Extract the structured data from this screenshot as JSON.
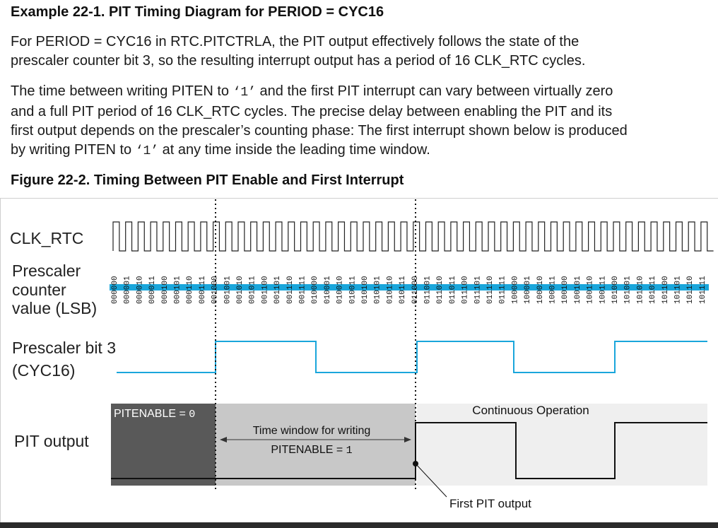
{
  "example": {
    "title": "Example 22-1. PIT Timing Diagram for PERIOD = CYC16",
    "para1_a": "For PERIOD = CYC16 in RTC.PITCTRLA, the PIT output effectively follows the state of the",
    "para1_b": "prescaler counter bit 3, so the resulting interrupt output has a period of 16 CLK_RTC cycles.",
    "para2_line1_a": "The time between writing PITEN to ",
    "para2_code": "‘1’",
    "para2_line1_b": " and the first PIT interrupt can vary between virtually zero",
    "para2_line2": "and a full PIT period of 16 CLK_RTC cycles. The precise delay between enabling the PIT and its",
    "para2_line3": "first output depends on the prescaler’s counting phase: The first interrupt shown below is produced",
    "para2_line4_a": "by writing PITEN to ",
    "para2_line4_b": " at any time inside the leading time window."
  },
  "figure": {
    "title": "Figure 22-2. Timing Between PIT Enable and First Interrupt",
    "labels": {
      "clk": "CLK_RTC",
      "prescaler_1": "Prescaler",
      "prescaler_2": "counter",
      "prescaler_3": "value (LSB)",
      "bit3_1": "Prescaler bit 3",
      "bit3_2": "(CYC16)",
      "pit": "PIT output"
    },
    "counter_values": [
      "000000",
      "000001",
      "000010",
      "000011",
      "000100",
      "000101",
      "000110",
      "000111",
      "001000",
      "001001",
      "001010",
      "001011",
      "001100",
      "001101",
      "001110",
      "001111",
      "010000",
      "010001",
      "010010",
      "010011",
      "010100",
      "010101",
      "010110",
      "010111",
      "011000",
      "011001",
      "011010",
      "011011",
      "011100",
      "011101",
      "011110",
      "011111",
      "100000",
      "100001",
      "100010",
      "100011",
      "100100",
      "100101",
      "100110",
      "100111",
      "101000",
      "101001",
      "101010",
      "101011",
      "101100",
      "101101",
      "101110",
      "101111"
    ],
    "regions": {
      "disabled_prefix": "PITENABLE = ",
      "disabled_value": "0",
      "window_line1": "Time window for writing",
      "window_prefix": "PITENABLE = ",
      "window_value": "1",
      "continuous": "Continuous Operation",
      "first_output": "First PIT output"
    },
    "colors": {
      "signal_blue": "#1aa6db",
      "disabled_fill": "#595959",
      "window_fill": "#c8c8c8",
      "continuous_fill": "#efefef"
    }
  }
}
